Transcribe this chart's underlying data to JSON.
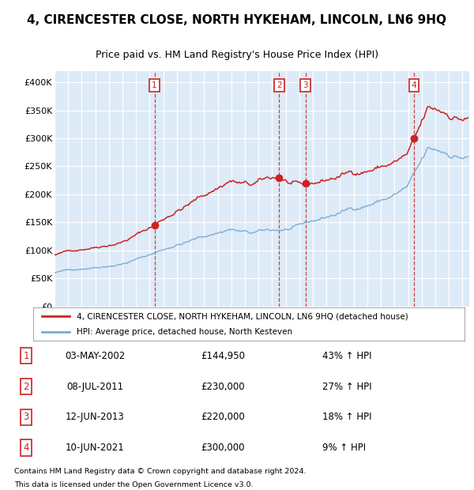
{
  "title": "4, CIRENCESTER CLOSE, NORTH HYKEHAM, LINCOLN, LN6 9HQ",
  "subtitle": "Price paid vs. HM Land Registry's House Price Index (HPI)",
  "bg_color": "#ddeaf7",
  "red_line_color": "#cc2222",
  "blue_line_color": "#7aadd4",
  "ylim": [
    0,
    420000
  ],
  "yticks": [
    0,
    50000,
    100000,
    150000,
    200000,
    250000,
    300000,
    350000,
    400000
  ],
  "ytick_labels": [
    "£0",
    "£50K",
    "£100K",
    "£150K",
    "£200K",
    "£250K",
    "£300K",
    "£350K",
    "£400K"
  ],
  "legend_line1": "4, CIRENCESTER CLOSE, NORTH HYKEHAM, LINCOLN, LN6 9HQ (detached house)",
  "legend_line2": "HPI: Average price, detached house, North Kesteven",
  "sales": [
    {
      "num": 1,
      "date": "03-MAY-2002",
      "price": 144950,
      "price_str": "£144,950",
      "pct": "43%",
      "direction": "↑",
      "year": 2002.35
    },
    {
      "num": 2,
      "date": "08-JUL-2011",
      "price": 230000,
      "price_str": "£230,000",
      "pct": "27%",
      "direction": "↑",
      "year": 2011.52
    },
    {
      "num": 3,
      "date": "12-JUN-2013",
      "price": 220000,
      "price_str": "£220,000",
      "pct": "18%",
      "direction": "↑",
      "year": 2013.45
    },
    {
      "num": 4,
      "date": "10-JUN-2021",
      "price": 300000,
      "price_str": "£300,000",
      "pct": "9%",
      "direction": "↑",
      "year": 2021.44
    }
  ],
  "footer1": "Contains HM Land Registry data © Crown copyright and database right 2024.",
  "footer2": "This data is licensed under the Open Government Licence v3.0.",
  "xmin": 1995,
  "xmax": 2025.5
}
